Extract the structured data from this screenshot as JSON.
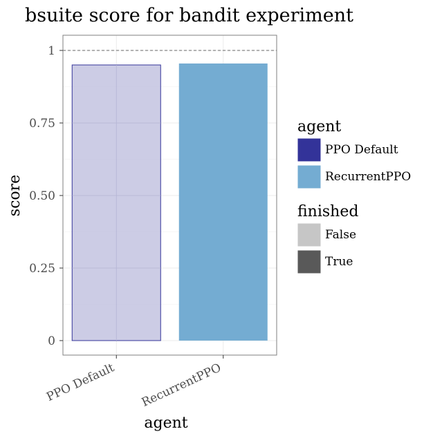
{
  "chart_data": {
    "type": "bar",
    "title": "bsuite score for bandit experiment",
    "xlabel": "agent",
    "ylabel": "score",
    "ylim": [
      0,
      1
    ],
    "yticks": [
      0,
      0.25,
      0.5,
      0.75,
      1
    ],
    "ytick_labels": [
      "0",
      "0.25",
      "0.50",
      "0.75",
      "1"
    ],
    "reference_line": {
      "y": 1,
      "style": "dashed"
    },
    "grid": true,
    "categories": [
      "PPO Default",
      "RecurrentPPO"
    ],
    "values": [
      0.95,
      0.955
    ],
    "finished": [
      "False",
      "True"
    ],
    "colors": {
      "PPO Default": "#333399",
      "RecurrentPPO": "#74acd2",
      "unfinished_fill": "#c3c3e1"
    },
    "legends": [
      {
        "title": "agent",
        "placement": "right",
        "entries": [
          {
            "label": "PPO Default",
            "color": "#333399"
          },
          {
            "label": "RecurrentPPO",
            "color": "#74acd2"
          }
        ]
      },
      {
        "title": "finished",
        "placement": "right",
        "entries": [
          {
            "label": "False",
            "color": "#c6c6c6"
          },
          {
            "label": "True",
            "color": "#595959"
          }
        ]
      }
    ]
  }
}
